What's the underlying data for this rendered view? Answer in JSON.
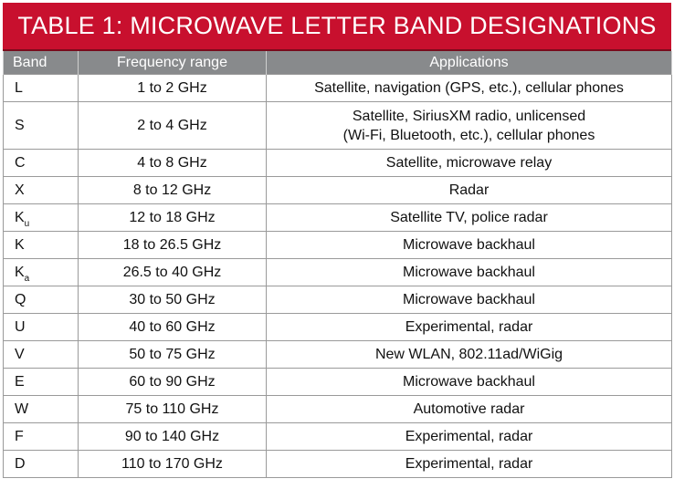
{
  "title": "TABLE 1: MICROWAVE LETTER BAND DESIGNATIONS",
  "columns": {
    "band": "Band",
    "frequency": "Frequency range",
    "applications": "Applications"
  },
  "rows": [
    {
      "band": "L",
      "sub": "",
      "range": "1 to 2 GHz",
      "app": [
        "Satellite, navigation (GPS, etc.), cellular phones"
      ]
    },
    {
      "band": "S",
      "sub": "",
      "range": "2 to 4 GHz",
      "app": [
        "Satellite, SiriusXM radio, unlicensed",
        "(Wi-Fi, Bluetooth, etc.), cellular phones"
      ]
    },
    {
      "band": "C",
      "sub": "",
      "range": "4 to 8 GHz",
      "app": [
        "Satellite, microwave relay"
      ]
    },
    {
      "band": "X",
      "sub": "",
      "range": "8 to 12 GHz",
      "app": [
        "Radar"
      ]
    },
    {
      "band": "K",
      "sub": "u",
      "range": "12 to 18 GHz",
      "app": [
        "Satellite TV, police radar"
      ]
    },
    {
      "band": "K",
      "sub": "",
      "range": "18 to 26.5 GHz",
      "app": [
        "Microwave backhaul"
      ]
    },
    {
      "band": "K",
      "sub": "a",
      "range": "26.5 to 40 GHz",
      "app": [
        "Microwave backhaul"
      ]
    },
    {
      "band": "Q",
      "sub": "",
      "range": "30 to 50 GHz",
      "app": [
        "Microwave backhaul"
      ]
    },
    {
      "band": "U",
      "sub": "",
      "range": "40 to 60 GHz",
      "app": [
        "Experimental, radar"
      ]
    },
    {
      "band": "V",
      "sub": "",
      "range": "50 to 75 GHz",
      "app": [
        "New WLAN, 802.11ad/WiGig"
      ]
    },
    {
      "band": "E",
      "sub": "",
      "range": "60 to 90 GHz",
      "app": [
        "Microwave backhaul"
      ]
    },
    {
      "band": "W",
      "sub": "",
      "range": "75 to 110 GHz",
      "app": [
        "Automotive radar"
      ]
    },
    {
      "band": "F",
      "sub": "",
      "range": "90 to 140 GHz",
      "app": [
        "Experimental, radar"
      ]
    },
    {
      "band": "D",
      "sub": "",
      "range": "110 to 170 GHz",
      "app": [
        "Experimental, radar"
      ]
    }
  ],
  "colors": {
    "title_background": "#c8102e",
    "header_background": "#888a8c",
    "grid_lines": "#9a9a9a"
  }
}
